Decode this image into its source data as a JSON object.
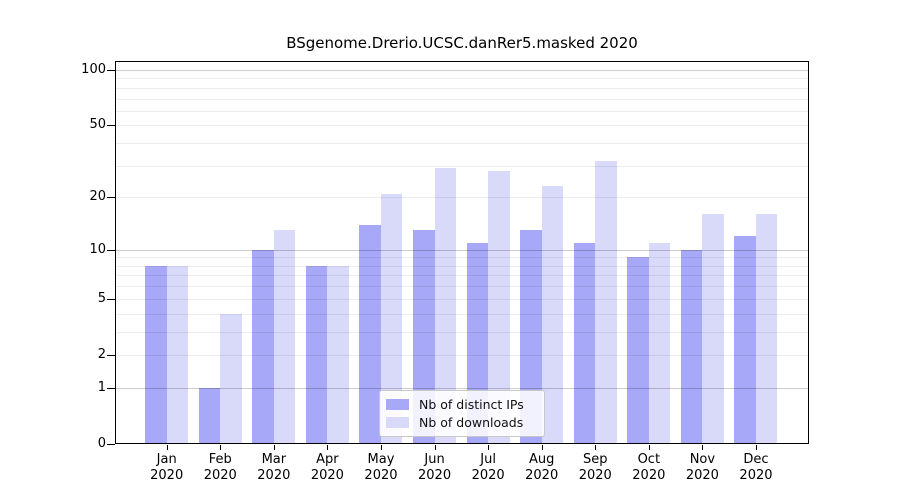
{
  "chart_data": {
    "type": "bar",
    "title": "BSgenome.Drerio.UCSC.danRer5.masked 2020",
    "categories": [
      "Jan",
      "Feb",
      "Mar",
      "Apr",
      "May",
      "Jun",
      "Jul",
      "Aug",
      "Sep",
      "Oct",
      "Nov",
      "Dec"
    ],
    "category_year": "2020",
    "series": [
      {
        "name": "Nb of distinct IPs",
        "color": "#a8a8f8",
        "values": [
          8,
          1,
          10,
          8,
          14,
          13,
          11,
          13,
          11,
          9,
          10,
          12
        ]
      },
      {
        "name": "Nb of downloads",
        "color": "#d9d9fa",
        "values": [
          8,
          4,
          13,
          8,
          21,
          29,
          28,
          23,
          32,
          11,
          16,
          16
        ]
      }
    ],
    "y_axis": {
      "scale": "log1p",
      "ticks": [
        0,
        1,
        2,
        5,
        10,
        20,
        50,
        100
      ],
      "max": 100,
      "grid_major": [
        1,
        10,
        100
      ],
      "grid_minor": [
        2,
        3,
        4,
        5,
        6,
        7,
        8,
        9,
        20,
        30,
        40,
        50,
        60,
        70,
        80,
        90
      ]
    },
    "xlabel": "",
    "ylabel": "",
    "grid": true,
    "legend_position": "bottom-center"
  }
}
